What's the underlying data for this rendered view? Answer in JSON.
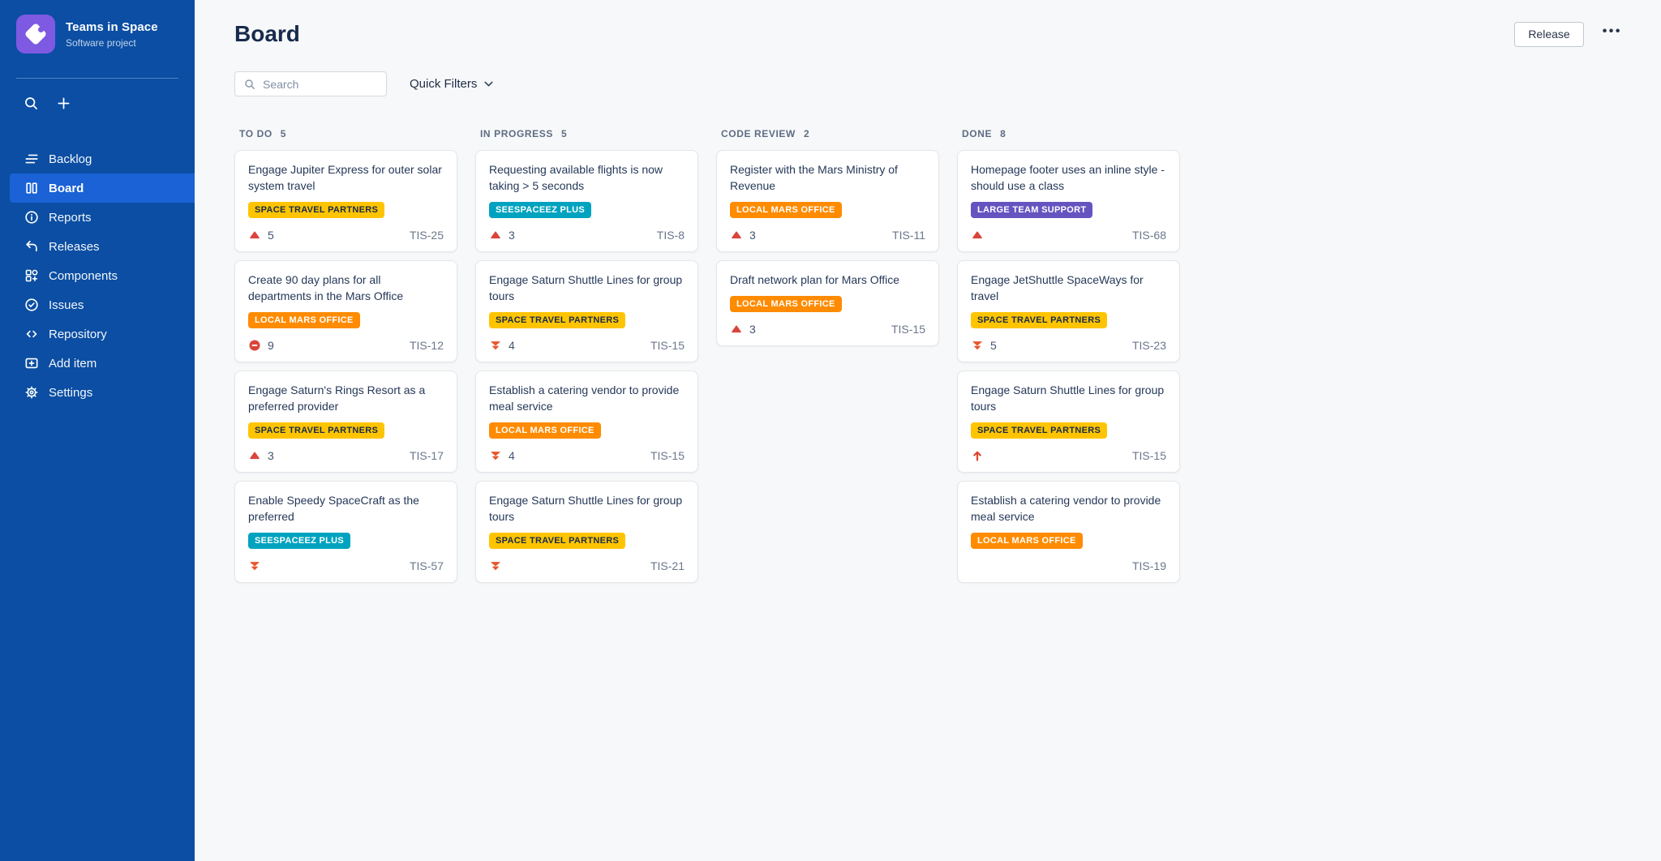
{
  "colors": {
    "sidebar_bg": "#0B4EA3",
    "sidebar_active": "#1A62D6",
    "logo_bg": "#7E5AE2",
    "page_bg": "#F7F8F9"
  },
  "sidebar": {
    "project": {
      "name": "Teams in Space",
      "subtitle": "Software project"
    },
    "actions": [
      {
        "id": "search",
        "icon": "search-icon"
      },
      {
        "id": "create",
        "icon": "plus-icon"
      }
    ],
    "items": [
      {
        "id": "backlog",
        "label": "Backlog",
        "icon": "backlog-icon",
        "active": false
      },
      {
        "id": "board",
        "label": "Board",
        "icon": "board-icon",
        "active": true
      },
      {
        "id": "reports",
        "label": "Reports",
        "icon": "reports-icon",
        "active": false
      },
      {
        "id": "releases",
        "label": "Releases",
        "icon": "releases-icon",
        "active": false
      },
      {
        "id": "components",
        "label": "Components",
        "icon": "components-icon",
        "active": false
      },
      {
        "id": "issues",
        "label": "Issues",
        "icon": "issues-icon",
        "active": false
      },
      {
        "id": "repository",
        "label": "Repository",
        "icon": "repository-icon",
        "active": false
      },
      {
        "id": "add-item",
        "label": "Add item",
        "icon": "add-item-icon",
        "active": false
      },
      {
        "id": "settings",
        "label": "Settings",
        "icon": "settings-icon",
        "active": false
      }
    ]
  },
  "header": {
    "title": "Board",
    "release_label": "Release",
    "more_label": "•••"
  },
  "toolbar": {
    "search_placeholder": "Search",
    "quick_filters_label": "Quick Filters"
  },
  "label_colors": {
    "SPACE TRAVEL PARTNERS": {
      "bg": "#FFC400",
      "text": "#172B4D"
    },
    "LOCAL MARS OFFICE": {
      "bg": "#FF8B00",
      "text": "#FFFFFF"
    },
    "SEESPACEEZ PLUS": {
      "bg": "#00A3BF",
      "text": "#FFFFFF"
    },
    "LARGE TEAM SUPPORT": {
      "bg": "#6554C0",
      "text": "#FFFFFF"
    }
  },
  "priority_colors": {
    "triangle-up-icon": "#DA453B",
    "blocker-icon": "#DA453B",
    "double-chevron-down-icon": "#E8562B",
    "arrow-up-icon": "#DE472E"
  },
  "board": {
    "columns": [
      {
        "name": "TO DO",
        "count": "5",
        "cards": [
          {
            "title": "Engage Jupiter Express for outer solar system travel",
            "label": "SPACE TRAVEL PARTNERS",
            "priority": "triangle-up-icon",
            "estimate": "5",
            "key": "TIS-25"
          },
          {
            "title": "Create 90 day plans for all departments in the Mars Office",
            "label": "LOCAL MARS OFFICE",
            "priority": "blocker-icon",
            "estimate": "9",
            "key": "TIS-12"
          },
          {
            "title": "Engage Saturn's Rings Resort as a preferred provider",
            "label": "SPACE TRAVEL PARTNERS",
            "priority": "triangle-up-icon",
            "estimate": "3",
            "key": "TIS-17"
          },
          {
            "title": "Enable Speedy SpaceCraft as the preferred",
            "label": "SEESPACEEZ PLUS",
            "priority": "double-chevron-down-icon",
            "estimate": null,
            "key": "TIS-57"
          }
        ]
      },
      {
        "name": "IN PROGRESS",
        "count": "5",
        "cards": [
          {
            "title": "Requesting available flights is now taking > 5 seconds",
            "label": "SEESPACEEZ PLUS",
            "priority": "triangle-up-icon",
            "estimate": "3",
            "key": "TIS-8"
          },
          {
            "title": "Engage Saturn Shuttle Lines for group tours",
            "label": "SPACE TRAVEL PARTNERS",
            "priority": "double-chevron-down-icon",
            "estimate": "4",
            "key": "TIS-15"
          },
          {
            "title": "Establish a catering vendor to provide meal service",
            "label": "LOCAL MARS OFFICE",
            "priority": "double-chevron-down-icon",
            "estimate": "4",
            "key": "TIS-15"
          },
          {
            "title": "Engage Saturn Shuttle Lines for group tours",
            "label": "SPACE TRAVEL PARTNERS",
            "priority": "double-chevron-down-icon",
            "estimate": null,
            "key": "TIS-21"
          }
        ]
      },
      {
        "name": "CODE REVIEW",
        "count": "2",
        "cards": [
          {
            "title": "Register with the Mars Ministry of Revenue",
            "label": "LOCAL MARS OFFICE",
            "priority": "triangle-up-icon",
            "estimate": "3",
            "key": "TIS-11"
          },
          {
            "title": "Draft network plan for Mars Office",
            "label": "LOCAL MARS OFFICE",
            "priority": "triangle-up-icon",
            "estimate": "3",
            "key": "TIS-15"
          }
        ]
      },
      {
        "name": "DONE",
        "count": "8",
        "cards": [
          {
            "title": "Homepage footer uses an inline style - should use a class",
            "label": "LARGE TEAM SUPPORT",
            "priority": "triangle-up-icon",
            "estimate": null,
            "key": "TIS-68"
          },
          {
            "title": "Engage JetShuttle SpaceWays for travel",
            "label": "SPACE TRAVEL PARTNERS",
            "priority": "double-chevron-down-icon",
            "estimate": "5",
            "key": "TIS-23"
          },
          {
            "title": "Engage Saturn Shuttle Lines for group tours",
            "label": "SPACE TRAVEL PARTNERS",
            "priority": "arrow-up-icon",
            "estimate": null,
            "key": "TIS-15"
          },
          {
            "title": "Establish a catering vendor to provide meal service",
            "label": "LOCAL MARS OFFICE",
            "priority": null,
            "estimate": null,
            "key": "TIS-19"
          }
        ]
      }
    ]
  }
}
